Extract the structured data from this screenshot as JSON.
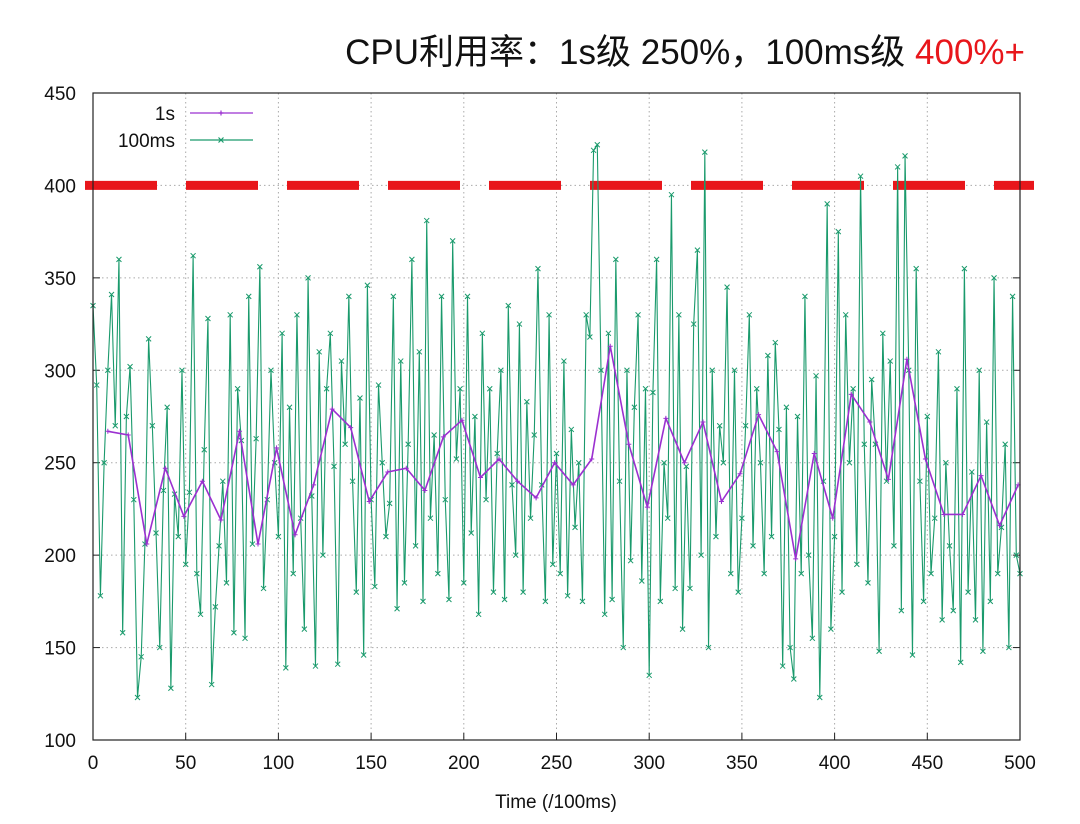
{
  "chart_data": {
    "type": "line",
    "title": "CPU利用率：1s级 250%，100ms级 ",
    "title_highlight": "400%+",
    "title_highlight_color": "#e8161b",
    "xlabel": "Time (/100ms)",
    "ylabel": "",
    "xlim": [
      0,
      500
    ],
    "ylim": [
      100,
      450
    ],
    "xticks": [
      "0",
      "50",
      "100",
      "150",
      "200",
      "250",
      "300",
      "350",
      "400",
      "450",
      "500"
    ],
    "yticks": [
      "100",
      "150",
      "200",
      "250",
      "300",
      "350",
      "400",
      "450"
    ],
    "grid": true,
    "legend_position": "top-left",
    "reference_line": {
      "y": 400,
      "color": "#e8161b",
      "style": "dashed"
    },
    "series": [
      {
        "name": "1s",
        "color": "#9b30d0",
        "marker": "plus",
        "x": [
          8,
          19,
          29,
          39,
          49,
          59,
          69,
          79,
          89,
          99,
          109,
          119,
          129,
          139,
          149,
          159,
          169,
          179,
          189,
          199,
          209,
          219,
          229,
          239,
          249,
          259,
          269,
          279,
          289,
          299,
          309,
          319,
          329,
          339,
          349,
          359,
          369,
          379,
          389,
          399,
          409,
          419,
          429,
          439,
          449,
          459,
          469,
          479,
          489,
          499
        ],
        "values": [
          267,
          265,
          206,
          247,
          221,
          240,
          219,
          267,
          206,
          258,
          211,
          238,
          279,
          269,
          229,
          245,
          247,
          235,
          264,
          273,
          242,
          252,
          240,
          231,
          250,
          238,
          252,
          313,
          260,
          226,
          274,
          250,
          272,
          229,
          244,
          276,
          256,
          198,
          255,
          220,
          287,
          272,
          241,
          306,
          252,
          222,
          222,
          243,
          216,
          238
        ]
      },
      {
        "name": "100ms",
        "color": "#1a9a6c",
        "marker": "cross",
        "values": [
          335,
          292,
          178,
          250,
          300,
          341,
          270,
          360,
          158,
          275,
          302,
          230,
          123,
          145,
          206,
          317,
          270,
          212,
          150,
          235,
          280,
          128,
          233,
          210,
          300,
          195,
          234,
          362,
          190,
          168,
          257,
          328,
          130,
          172,
          205,
          240,
          185,
          330,
          158,
          290,
          262,
          155,
          340,
          206,
          263,
          356,
          182,
          230,
          300,
          250,
          210,
          320,
          139,
          280,
          190,
          330,
          220,
          160,
          350,
          232,
          140,
          310,
          200,
          290,
          320,
          248,
          141,
          305,
          260,
          340,
          240,
          180,
          285,
          146,
          346,
          230,
          183,
          292,
          250,
          210,
          228,
          340,
          171,
          305,
          185,
          260,
          360,
          205,
          310,
          175,
          381,
          220,
          265,
          190,
          340,
          230,
          176,
          370,
          252,
          290,
          185,
          340,
          212,
          275,
          168,
          320,
          230,
          290,
          180,
          255,
          300,
          176,
          335,
          238,
          200,
          325,
          180,
          283,
          220,
          265,
          355,
          238,
          175,
          330,
          195,
          255,
          190,
          305,
          178,
          268,
          215,
          250,
          175,
          330,
          318,
          419,
          422,
          300,
          168,
          320,
          176,
          360,
          240,
          150,
          300,
          197,
          280,
          330,
          186,
          290,
          135,
          288,
          360,
          175,
          250,
          220,
          395,
          182,
          330,
          160,
          248,
          182,
          325,
          365,
          200,
          418,
          150,
          300,
          210,
          270,
          250,
          345,
          190,
          300,
          180,
          220,
          270,
          330,
          205,
          290,
          250,
          190,
          308,
          210,
          315,
          268,
          140,
          280,
          150,
          133,
          275,
          190,
          340,
          200,
          155,
          297,
          123,
          240,
          390,
          160,
          210,
          375,
          180,
          330,
          250,
          290,
          195,
          405,
          260,
          185,
          295,
          260,
          148,
          320,
          240,
          305,
          205,
          410,
          170,
          416,
          300,
          146,
          355,
          240,
          175,
          275,
          190,
          220,
          310,
          165,
          250,
          205,
          170,
          290,
          142,
          355,
          180,
          245,
          165,
          300,
          148,
          272,
          175,
          350,
          190,
          215,
          260,
          150,
          340,
          200,
          190
        ]
      }
    ]
  }
}
